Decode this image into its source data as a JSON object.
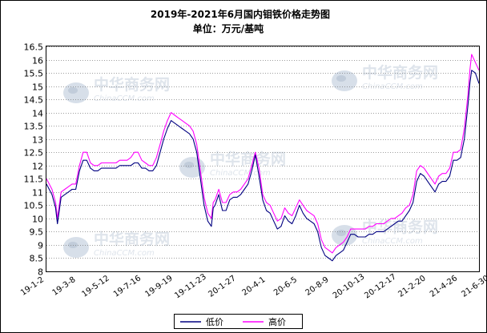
{
  "chart_data": {
    "type": "line",
    "title": "2019年-2021年6月国内钼铁价格走势图",
    "subtitle": "单位：万元/基吨",
    "xlabel": "",
    "ylabel": "",
    "ylim": [
      8,
      16.5
    ],
    "yticks": [
      "8",
      "8.5",
      "9",
      "9.5",
      "10",
      "10.5",
      "11",
      "11.5",
      "12",
      "12.5",
      "13",
      "13.5",
      "14",
      "14.5",
      "15",
      "15.5",
      "16",
      "16.5"
    ],
    "xticks": [
      "19-1-2",
      "19-3-8",
      "19-5-12",
      "19-7-16",
      "19-9-19",
      "19-11-23",
      "20-1-27",
      "20-4-1",
      "20-6-5",
      "20-8-9",
      "20-10-13",
      "20-12-17",
      "21-2-20",
      "21-4-26",
      "21-6-30"
    ],
    "grid": true,
    "legend": "bottom",
    "watermark": "中华商务网 ChinaCCM.com",
    "series": [
      {
        "name": "低价",
        "color": "#000080",
        "points": [
          [
            0,
            11.3
          ],
          [
            1.5,
            10.9
          ],
          [
            2.5,
            10.4
          ],
          [
            3,
            9.8
          ],
          [
            4,
            10.8
          ],
          [
            5,
            10.9
          ],
          [
            6,
            11.0
          ],
          [
            7,
            11.1
          ],
          [
            8,
            11.1
          ],
          [
            9,
            11.8
          ],
          [
            10,
            12.2
          ],
          [
            11,
            12.2
          ],
          [
            12,
            11.9
          ],
          [
            13,
            11.8
          ],
          [
            14,
            11.8
          ],
          [
            15,
            11.9
          ],
          [
            16,
            11.9
          ],
          [
            17,
            11.9
          ],
          [
            18,
            11.9
          ],
          [
            19,
            11.9
          ],
          [
            20,
            12.0
          ],
          [
            21,
            12.0
          ],
          [
            22,
            12.0
          ],
          [
            23,
            12.0
          ],
          [
            24,
            12.1
          ],
          [
            25,
            12.1
          ],
          [
            26,
            11.9
          ],
          [
            27,
            11.9
          ],
          [
            28,
            11.8
          ],
          [
            29,
            11.8
          ],
          [
            30,
            12.0
          ],
          [
            31,
            12.5
          ],
          [
            32,
            13.0
          ],
          [
            33,
            13.4
          ],
          [
            34,
            13.7
          ],
          [
            35,
            13.6
          ],
          [
            36,
            13.5
          ],
          [
            37,
            13.4
          ],
          [
            38,
            13.3
          ],
          [
            39,
            13.2
          ],
          [
            40,
            13.0
          ],
          [
            41,
            12.5
          ],
          [
            42,
            11.5
          ],
          [
            43,
            10.5
          ],
          [
            44,
            9.9
          ],
          [
            45,
            9.7
          ],
          [
            45.5,
            10.4
          ],
          [
            46,
            10.5
          ],
          [
            47,
            10.9
          ],
          [
            48,
            10.3
          ],
          [
            49,
            10.3
          ],
          [
            50,
            10.7
          ],
          [
            51,
            10.8
          ],
          [
            52,
            10.8
          ],
          [
            53,
            10.9
          ],
          [
            54,
            11.1
          ],
          [
            55,
            11.3
          ],
          [
            56,
            11.8
          ],
          [
            57,
            12.4
          ],
          [
            58,
            11.6
          ],
          [
            59,
            10.7
          ],
          [
            60,
            10.3
          ],
          [
            61,
            10.2
          ],
          [
            62,
            9.9
          ],
          [
            63,
            9.6
          ],
          [
            64,
            9.7
          ],
          [
            65,
            10.1
          ],
          [
            66,
            9.9
          ],
          [
            67,
            9.8
          ],
          [
            68,
            10.1
          ],
          [
            69,
            10.5
          ],
          [
            70,
            10.2
          ],
          [
            71,
            10.0
          ],
          [
            72,
            9.9
          ],
          [
            73,
            9.8
          ],
          [
            74,
            9.5
          ],
          [
            75,
            8.9
          ],
          [
            76,
            8.6
          ],
          [
            77,
            8.5
          ],
          [
            78,
            8.4
          ],
          [
            79,
            8.6
          ],
          [
            80,
            8.7
          ],
          [
            81,
            8.8
          ],
          [
            82,
            9.1
          ],
          [
            83,
            9.4
          ],
          [
            84,
            9.4
          ],
          [
            85,
            9.3
          ],
          [
            86,
            9.3
          ],
          [
            87,
            9.3
          ],
          [
            88,
            9.4
          ],
          [
            89,
            9.4
          ],
          [
            90,
            9.5
          ],
          [
            91,
            9.5
          ],
          [
            92,
            9.5
          ],
          [
            93,
            9.6
          ],
          [
            94,
            9.7
          ],
          [
            95,
            9.8
          ],
          [
            96,
            9.9
          ],
          [
            97,
            9.9
          ],
          [
            98,
            10.1
          ],
          [
            99,
            10.3
          ],
          [
            100,
            10.6
          ],
          [
            101,
            11.4
          ],
          [
            102,
            11.7
          ],
          [
            103,
            11.6
          ],
          [
            104,
            11.4
          ],
          [
            105,
            11.2
          ],
          [
            106,
            11.0
          ],
          [
            107,
            11.3
          ],
          [
            108,
            11.4
          ],
          [
            109,
            11.4
          ],
          [
            110,
            11.6
          ],
          [
            111,
            12.2
          ],
          [
            112,
            12.2
          ],
          [
            113,
            12.3
          ],
          [
            114,
            13.0
          ],
          [
            115,
            14.3
          ],
          [
            115.5,
            15.1
          ],
          [
            116,
            15.6
          ],
          [
            117,
            15.5
          ],
          [
            118,
            15.1
          ]
        ]
      },
      {
        "name": "高价",
        "color": "#ff00ff",
        "points": [
          [
            0,
            11.5
          ],
          [
            1.5,
            11.1
          ],
          [
            2.5,
            10.6
          ],
          [
            3,
            10.0
          ],
          [
            4,
            11.0
          ],
          [
            5,
            11.1
          ],
          [
            6,
            11.2
          ],
          [
            7,
            11.3
          ],
          [
            8,
            11.3
          ],
          [
            9,
            12.0
          ],
          [
            10,
            12.5
          ],
          [
            11,
            12.5
          ],
          [
            12,
            12.1
          ],
          [
            13,
            12.0
          ],
          [
            14,
            12.0
          ],
          [
            15,
            12.1
          ],
          [
            16,
            12.1
          ],
          [
            17,
            12.1
          ],
          [
            18,
            12.1
          ],
          [
            19,
            12.1
          ],
          [
            20,
            12.2
          ],
          [
            21,
            12.2
          ],
          [
            22,
            12.2
          ],
          [
            23,
            12.3
          ],
          [
            24,
            12.5
          ],
          [
            25,
            12.5
          ],
          [
            26,
            12.2
          ],
          [
            27,
            12.1
          ],
          [
            28,
            12.0
          ],
          [
            29,
            12.0
          ],
          [
            30,
            12.3
          ],
          [
            31,
            12.8
          ],
          [
            32,
            13.3
          ],
          [
            33,
            13.7
          ],
          [
            34,
            14.0
          ],
          [
            35,
            13.9
          ],
          [
            36,
            13.8
          ],
          [
            37,
            13.7
          ],
          [
            38,
            13.6
          ],
          [
            39,
            13.5
          ],
          [
            40,
            13.3
          ],
          [
            41,
            12.8
          ],
          [
            42,
            11.8
          ],
          [
            43,
            10.8
          ],
          [
            44,
            10.2
          ],
          [
            45,
            10.0
          ],
          [
            45.5,
            10.6
          ],
          [
            46,
            10.7
          ],
          [
            47,
            11.1
          ],
          [
            48,
            10.6
          ],
          [
            49,
            10.6
          ],
          [
            50,
            10.9
          ],
          [
            51,
            11.0
          ],
          [
            52,
            11.0
          ],
          [
            53,
            11.1
          ],
          [
            54,
            11.3
          ],
          [
            55,
            11.5
          ],
          [
            56,
            12.0
          ],
          [
            57,
            12.5
          ],
          [
            58,
            11.9
          ],
          [
            59,
            10.9
          ],
          [
            60,
            10.6
          ],
          [
            61,
            10.5
          ],
          [
            62,
            10.2
          ],
          [
            63,
            9.9
          ],
          [
            64,
            10.0
          ],
          [
            65,
            10.4
          ],
          [
            66,
            10.2
          ],
          [
            67,
            10.1
          ],
          [
            68,
            10.4
          ],
          [
            69,
            10.7
          ],
          [
            70,
            10.5
          ],
          [
            71,
            10.3
          ],
          [
            72,
            10.2
          ],
          [
            73,
            10.1
          ],
          [
            74,
            9.8
          ],
          [
            75,
            9.2
          ],
          [
            76,
            8.9
          ],
          [
            77,
            8.8
          ],
          [
            78,
            8.7
          ],
          [
            79,
            8.9
          ],
          [
            80,
            9.0
          ],
          [
            81,
            9.1
          ],
          [
            82,
            9.3
          ],
          [
            83,
            9.6
          ],
          [
            84,
            9.6
          ],
          [
            85,
            9.6
          ],
          [
            86,
            9.6
          ],
          [
            87,
            9.6
          ],
          [
            88,
            9.7
          ],
          [
            89,
            9.7
          ],
          [
            90,
            9.8
          ],
          [
            91,
            9.8
          ],
          [
            92,
            9.8
          ],
          [
            93,
            9.9
          ],
          [
            94,
            10.0
          ],
          [
            95,
            10.0
          ],
          [
            96,
            10.1
          ],
          [
            97,
            10.2
          ],
          [
            98,
            10.4
          ],
          [
            99,
            10.5
          ],
          [
            100,
            10.9
          ],
          [
            101,
            11.8
          ],
          [
            102,
            12.0
          ],
          [
            103,
            11.9
          ],
          [
            104,
            11.7
          ],
          [
            105,
            11.5
          ],
          [
            106,
            11.3
          ],
          [
            107,
            11.6
          ],
          [
            108,
            11.7
          ],
          [
            109,
            11.7
          ],
          [
            110,
            11.9
          ],
          [
            111,
            12.5
          ],
          [
            112,
            12.5
          ],
          [
            113,
            12.6
          ],
          [
            114,
            13.4
          ],
          [
            115,
            14.7
          ],
          [
            115.5,
            15.6
          ],
          [
            116,
            16.2
          ],
          [
            117,
            15.9
          ],
          [
            118,
            15.6
          ]
        ]
      }
    ]
  }
}
